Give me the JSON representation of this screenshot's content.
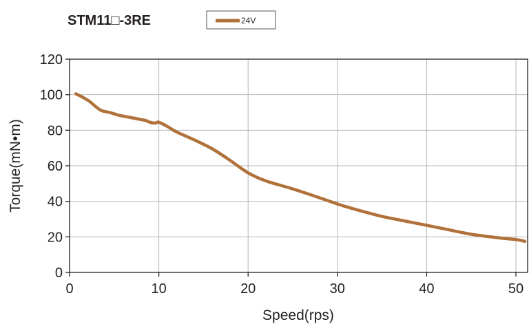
{
  "chart_data": {
    "type": "line",
    "title": "STM11□-3RE",
    "xlabel": "Speed(rps)",
    "ylabel": "Torque(mN•m)",
    "xlim": [
      0,
      50
    ],
    "ylim": [
      0,
      120
    ],
    "x_ticks": [
      "0",
      "10",
      "20",
      "30",
      "40",
      "50"
    ],
    "y_ticks": [
      "0",
      "20",
      "40",
      "60",
      "80",
      "100",
      "120"
    ],
    "grid": true,
    "legend_position": "top-center",
    "series": [
      {
        "name": "24V",
        "color": "#b0713a",
        "x": [
          0.7,
          1.5,
          2.3,
          3.0,
          3.6,
          4.5,
          5.5,
          6.5,
          7.5,
          8.5,
          9.0,
          9.6,
          10.0,
          11.0,
          12.0,
          14.0,
          16.0,
          18.0,
          20.0,
          22.0,
          25.0,
          28.0,
          30.0,
          32.0,
          35.0,
          38.0,
          40.0,
          42.0,
          45.0,
          48.0,
          50.0,
          51.0
        ],
        "values": [
          100.5,
          98.5,
          96,
          93,
          91,
          90,
          88.5,
          87.5,
          86.5,
          85.5,
          84.5,
          84,
          84.5,
          82,
          79,
          74.5,
          69.5,
          63,
          56,
          51.5,
          47,
          42,
          38.5,
          35.5,
          31.5,
          28.5,
          26.5,
          24.5,
          21.5,
          19.5,
          18.5,
          17.5
        ]
      }
    ]
  }
}
